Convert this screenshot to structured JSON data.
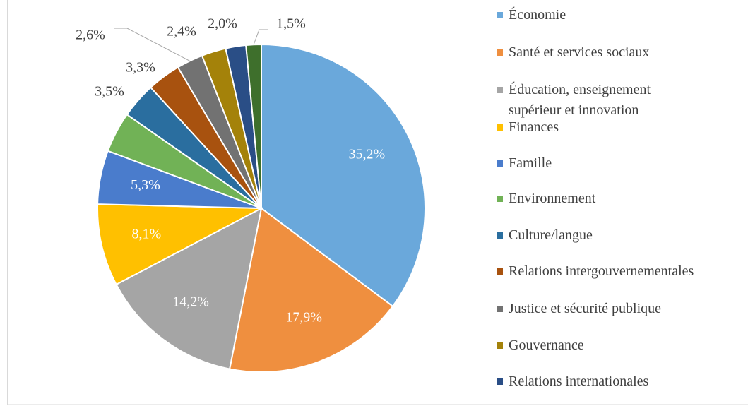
{
  "chart_data": {
    "type": "pie",
    "categories": [
      "Économie",
      "Santé et services sociaux",
      "Éducation, enseignement supérieur et innovation",
      "Finances",
      "Famille",
      "Environnement",
      "Culture/langue",
      "Relations intergouvernementales",
      "Justice et sécurité publique",
      "Gouvernance",
      "Relations internationales",
      null
    ],
    "values": [
      35.2,
      17.9,
      14.2,
      8.1,
      5.3,
      4.0,
      3.5,
      3.3,
      2.6,
      2.4,
      2.0,
      1.5
    ],
    "value_labels": [
      "35,2%",
      "17,9%",
      "14,2%",
      "8,1%",
      "5,3%",
      null,
      "3,5%",
      "3,3%",
      "2,6%",
      "2,4%",
      "2,0%",
      "1,5%"
    ],
    "colors": [
      "#6aa8db",
      "#ef8f3f",
      "#a5a5a5",
      "#ffc000",
      "#4a7ccc",
      "#71b256",
      "#2a6e9f",
      "#a8520f",
      "#727272",
      "#a4820a",
      "#2a4e86",
      "#3e6f2c"
    ],
    "legend": "right"
  }
}
